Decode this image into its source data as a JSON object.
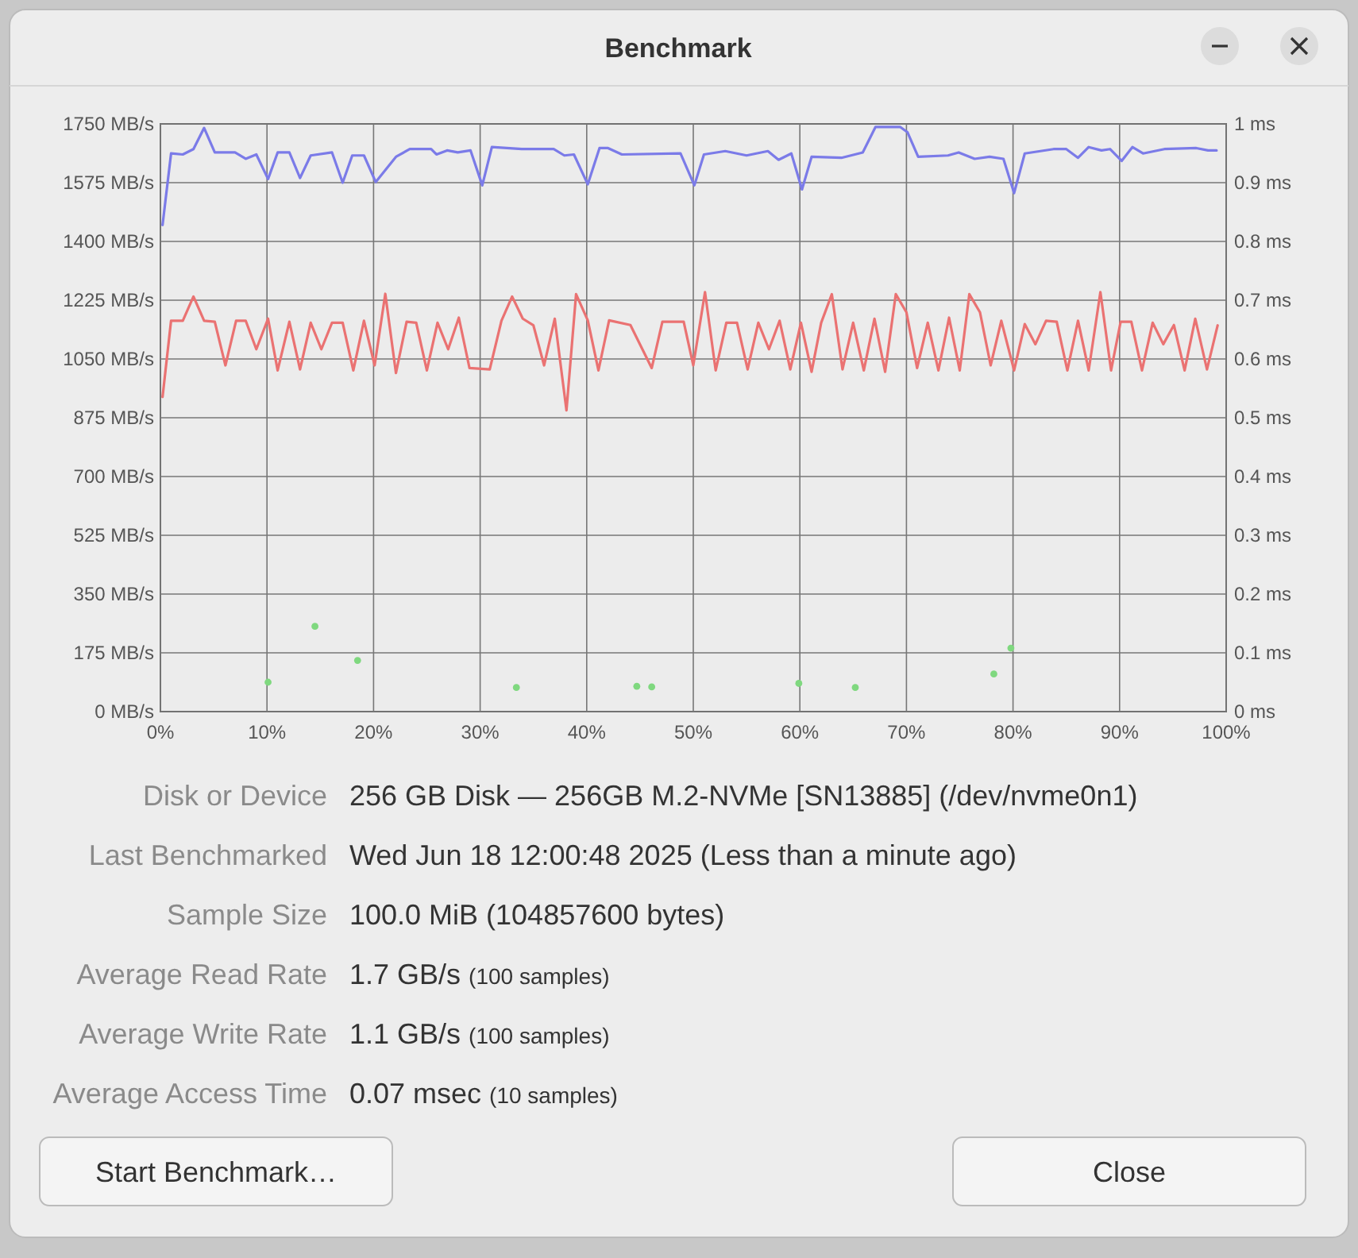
{
  "chart_data": {
    "type": "line",
    "title": "Benchmark",
    "xlim": [
      0,
      100
    ],
    "xticks": [
      {
        "value": 0,
        "label": "0%"
      },
      {
        "value": 10,
        "label": "10%"
      },
      {
        "value": 20,
        "label": "20%"
      },
      {
        "value": 30,
        "label": "30%"
      },
      {
        "value": 40,
        "label": "40%"
      },
      {
        "value": 50,
        "label": "50%"
      },
      {
        "value": 60,
        "label": "60%"
      },
      {
        "value": 70,
        "label": "70%"
      },
      {
        "value": 80,
        "label": "80%"
      },
      {
        "value": 90,
        "label": "90%"
      },
      {
        "value": 100,
        "label": "100%"
      }
    ],
    "ylim": [
      0,
      1750
    ],
    "yticks": [
      {
        "value": 0,
        "label": "0 MB/s"
      },
      {
        "value": 175,
        "label": "175 MB/s"
      },
      {
        "value": 350,
        "label": "350 MB/s"
      },
      {
        "value": 525,
        "label": "525 MB/s"
      },
      {
        "value": 700,
        "label": "700 MB/s"
      },
      {
        "value": 875,
        "label": "875 MB/s"
      },
      {
        "value": 1050,
        "label": "1050 MB/s"
      },
      {
        "value": 1225,
        "label": "1225 MB/s"
      },
      {
        "value": 1400,
        "label": "1400 MB/s"
      },
      {
        "value": 1575,
        "label": "1575 MB/s"
      },
      {
        "value": 1750,
        "label": "1750 MB/s"
      }
    ],
    "y2lim": [
      0,
      1
    ],
    "y2ticks": [
      {
        "value": 0,
        "label": "0 ms"
      },
      {
        "value": 0.1,
        "label": "0.1 ms"
      },
      {
        "value": 0.2,
        "label": "0.2 ms"
      },
      {
        "value": 0.3,
        "label": "0.3 ms"
      },
      {
        "value": 0.4,
        "label": "0.4 ms"
      },
      {
        "value": 0.5,
        "label": "0.5 ms"
      },
      {
        "value": 0.6,
        "label": "0.6 ms"
      },
      {
        "value": 0.7,
        "label": "0.7 ms"
      },
      {
        "value": 0.8,
        "label": "0.8 ms"
      },
      {
        "value": 0.9,
        "label": "0.9 ms"
      },
      {
        "value": 1,
        "label": "1 ms"
      }
    ],
    "grid": true,
    "series": [
      {
        "color": "#7b7be8",
        "x": [
          0.2,
          1.0,
          2.1,
          3.1,
          4.1,
          5.1,
          7.0,
          8.0,
          9.0,
          10.1,
          11.0,
          12.1,
          13.1,
          14.1,
          16.1,
          17.1,
          18.0,
          19.1,
          20.2,
          22.1,
          23.4,
          25.4,
          25.9,
          26.9,
          27.9,
          29.1,
          30.2,
          31.1,
          33.9,
          36.9,
          37.9,
          38.8,
          40.1,
          41.2,
          42.0,
          43.3,
          48.8,
          50.1,
          51.0,
          53.0,
          55.0,
          57.0,
          58.0,
          59.2,
          60.2,
          61.1,
          63.9,
          65.9,
          67.1,
          69.4,
          70.1,
          71.1,
          73.9,
          74.9,
          76.4,
          77.8,
          79.1,
          80.1,
          81.1,
          83.8,
          85.0,
          86.1,
          87.1,
          88.3,
          89.1,
          90.2,
          91.2,
          92.2,
          94.2,
          97.2,
          98.3,
          99.1
        ],
        "values": [
          1449,
          1662,
          1659,
          1675,
          1738,
          1665,
          1665,
          1646,
          1659,
          1586,
          1665,
          1665,
          1589,
          1656,
          1665,
          1575,
          1656,
          1656,
          1577,
          1652,
          1675,
          1675,
          1659,
          1671,
          1665,
          1671,
          1567,
          1681,
          1675,
          1675,
          1656,
          1659,
          1570,
          1678,
          1678,
          1659,
          1662,
          1567,
          1659,
          1669,
          1656,
          1669,
          1643,
          1662,
          1555,
          1652,
          1649,
          1665,
          1741,
          1741,
          1725,
          1652,
          1656,
          1665,
          1646,
          1652,
          1646,
          1544,
          1662,
          1675,
          1675,
          1649,
          1681,
          1671,
          1675,
          1640,
          1681,
          1662,
          1675,
          1678,
          1671,
          1671
        ]
      },
      {
        "color": "#ea7272",
        "x": [
          0.2,
          1.0,
          2.1,
          3.1,
          4.1,
          5.1,
          6.1,
          7.1,
          8.0,
          9.0,
          10.1,
          11.0,
          12.1,
          13.1,
          14.1,
          15.1,
          16.1,
          17.1,
          18.1,
          19.1,
          20.1,
          21.1,
          22.1,
          23.1,
          24.0,
          25.0,
          26.0,
          27.0,
          28.0,
          29.0,
          30.9,
          32.0,
          33.0,
          34.0,
          35.0,
          36.0,
          37.0,
          38.1,
          39.0,
          40.1,
          41.1,
          42.1,
          44.1,
          46.1,
          47.1,
          49.1,
          50.0,
          51.1,
          52.1,
          53.1,
          54.1,
          55.1,
          56.1,
          57.1,
          58.1,
          59.1,
          60.1,
          61.1,
          62.0,
          63.0,
          64.0,
          65.0,
          66.0,
          67.0,
          68.0,
          69.0,
          70.0,
          71.0,
          72.0,
          73.0,
          74.0,
          75.0,
          75.9,
          76.9,
          77.9,
          78.9,
          80.1,
          81.1,
          82.1,
          83.1,
          84.1,
          85.1,
          86.1,
          87.1,
          88.2,
          89.2,
          90.1,
          91.1,
          92.1,
          93.1,
          94.1,
          95.1,
          96.1,
          97.1,
          98.2,
          99.2
        ],
        "values": [
          937,
          1164,
          1164,
          1236,
          1164,
          1161,
          1031,
          1164,
          1164,
          1079,
          1170,
          1016,
          1161,
          1019,
          1158,
          1079,
          1158,
          1158,
          1016,
          1164,
          1031,
          1244,
          1008,
          1161,
          1158,
          1016,
          1158,
          1079,
          1173,
          1023,
          1019,
          1164,
          1236,
          1170,
          1150,
          1031,
          1170,
          897,
          1243,
          1165,
          1016,
          1165,
          1151,
          1023,
          1161,
          1161,
          1031,
          1249,
          1016,
          1158,
          1158,
          1019,
          1158,
          1079,
          1164,
          1019,
          1158,
          1012,
          1158,
          1243,
          1019,
          1158,
          1016,
          1170,
          1012,
          1243,
          1189,
          1023,
          1158,
          1016,
          1173,
          1016,
          1243,
          1189,
          1031,
          1164,
          1016,
          1154,
          1094,
          1164,
          1161,
          1016,
          1164,
          1016,
          1249,
          1016,
          1161,
          1161,
          1016,
          1158,
          1094,
          1151,
          1016,
          1170,
          1019,
          1150
        ]
      },
      {
        "type": "scatter",
        "axis": "y2",
        "color": "#7fd87f",
        "x": [
          10.1,
          14.5,
          18.5,
          33.4,
          44.7,
          46.1,
          59.9,
          65.2,
          78.2,
          79.8
        ],
        "values": [
          0.05,
          0.145,
          0.087,
          0.041,
          0.043,
          0.042,
          0.048,
          0.041,
          0.064,
          0.108
        ]
      }
    ],
    "annotations": [
      "Disk or Device",
      "256 GB Disk — 256GB M.2-NVMe [SN13885] (/dev/nvme0n1)",
      "Last Benchmarked",
      "Wed Jun 18 12:00:48 2025 (Less than a minute ago)",
      "Sample Size",
      "100.0 MiB (104857600 bytes)",
      "Average Read Rate",
      "1.7 GB/s",
      "(100 samples)",
      "Average Write Rate",
      "1.1 GB/s",
      "(100 samples)",
      "Average Access Time",
      "0.07 msec",
      "(10 samples)",
      "Start Benchmark…",
      "Close"
    ]
  }
}
